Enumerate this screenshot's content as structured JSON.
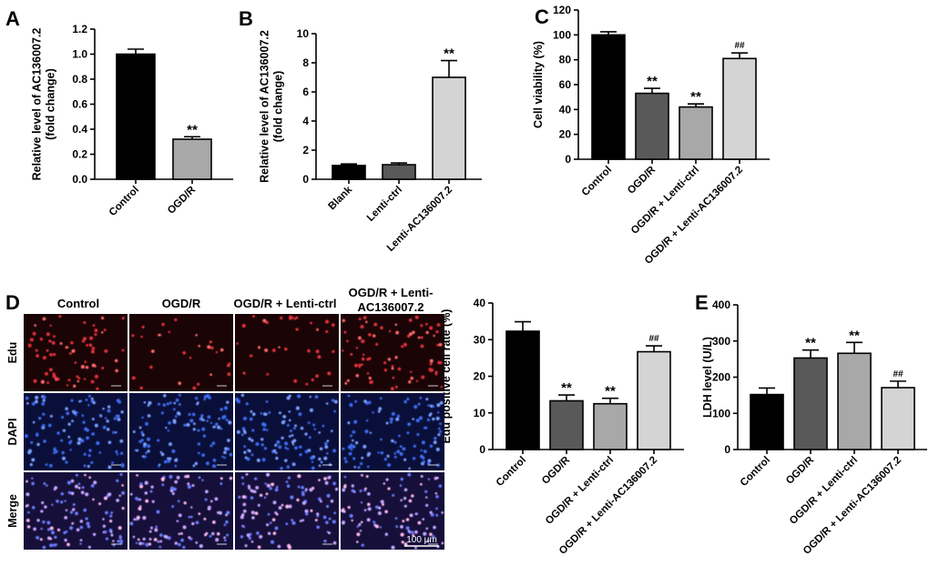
{
  "chart_data": [
    {
      "id": "A",
      "type": "bar",
      "panel_label": "A",
      "ylabel_lines": [
        "Relative level of AC136007.2",
        "(fold change)"
      ],
      "ylim": [
        0,
        1.2
      ],
      "yticks": [
        "0.0",
        "0.2",
        "0.4",
        "0.6",
        "0.8",
        "1.0",
        "1.2"
      ],
      "categories": [
        "Control",
        "OGD/R"
      ],
      "values": [
        1.0,
        0.32
      ],
      "errors": [
        0.04,
        0.02
      ],
      "colors": [
        "#000000",
        "#a8a8a8"
      ],
      "significance": [
        "",
        "**"
      ]
    },
    {
      "id": "B",
      "type": "bar",
      "panel_label": "B",
      "ylabel_lines": [
        "Relative level of AC136007.2",
        "(fold change)"
      ],
      "ylim": [
        0,
        10
      ],
      "yticks": [
        "0",
        "2",
        "4",
        "6",
        "8",
        "10"
      ],
      "categories": [
        "Blank",
        "Lenti-ctrl",
        "Lenti-AC136007.2"
      ],
      "values": [
        0.95,
        1.0,
        7.0
      ],
      "errors": [
        0.1,
        0.12,
        1.15
      ],
      "colors": [
        "#000000",
        "#595959",
        "#d4d4d4"
      ],
      "significance": [
        "",
        "",
        "**"
      ]
    },
    {
      "id": "C",
      "type": "bar",
      "panel_label": "C",
      "ylabel_lines": [
        "Cell viability (%)"
      ],
      "ylim": [
        0,
        120
      ],
      "yticks": [
        "0",
        "20",
        "40",
        "60",
        "80",
        "100",
        "120"
      ],
      "categories": [
        "Control",
        "OGD/R",
        "OGD/R + Lenti-ctrl",
        "OGD/R + Lenti-AC136007.2"
      ],
      "values": [
        100,
        53,
        42,
        81
      ],
      "errors": [
        2.5,
        4,
        2.5,
        4.5
      ],
      "colors": [
        "#000000",
        "#595959",
        "#a8a8a8",
        "#d4d4d4"
      ],
      "significance": [
        "",
        "**",
        "**",
        "##"
      ]
    },
    {
      "id": "D",
      "type": "bar",
      "panel_label": "D",
      "ylabel_lines": [
        "Edu positive cell rate (%)"
      ],
      "ylim": [
        0,
        40
      ],
      "yticks": [
        "0",
        "10",
        "20",
        "30",
        "40"
      ],
      "categories": [
        "Control",
        "OGD/R",
        "OGD/R + Lenti-ctrl",
        "OGD/R + Lenti-AC136007.2"
      ],
      "values": [
        32.3,
        13.3,
        12.5,
        26.7
      ],
      "errors": [
        2.6,
        1.6,
        1.5,
        1.6
      ],
      "colors": [
        "#000000",
        "#595959",
        "#a8a8a8",
        "#d4d4d4"
      ],
      "significance": [
        "",
        "**",
        "**",
        "##"
      ]
    },
    {
      "id": "E",
      "type": "bar",
      "panel_label": "E",
      "ylabel_lines": [
        "LDH  level (U/L)"
      ],
      "ylim": [
        0,
        400
      ],
      "yticks": [
        "0",
        "100",
        "200",
        "300",
        "400"
      ],
      "categories": [
        "Control",
        "OGD/R",
        "OGD/R + Lenti-ctrl",
        "OGD/R + Lenti-AC136007.2"
      ],
      "values": [
        152,
        253,
        266,
        171
      ],
      "errors": [
        18,
        22,
        30,
        18
      ],
      "colors": [
        "#000000",
        "#595959",
        "#a8a8a8",
        "#d4d4d4"
      ],
      "significance": [
        "",
        "**",
        "**",
        "##"
      ]
    }
  ],
  "micrographs": {
    "columns": [
      "Control",
      "OGD/R",
      "OGD/R + Lenti-ctrl",
      "OGD/R + Lenti-\nAC136007.2"
    ],
    "rows": [
      "Edu",
      "DAPI",
      "Merge"
    ],
    "scale_bar_label": "100 μm",
    "row_colors": [
      "#e0303a",
      "#3c6cf0",
      "#c8a8ff"
    ]
  }
}
